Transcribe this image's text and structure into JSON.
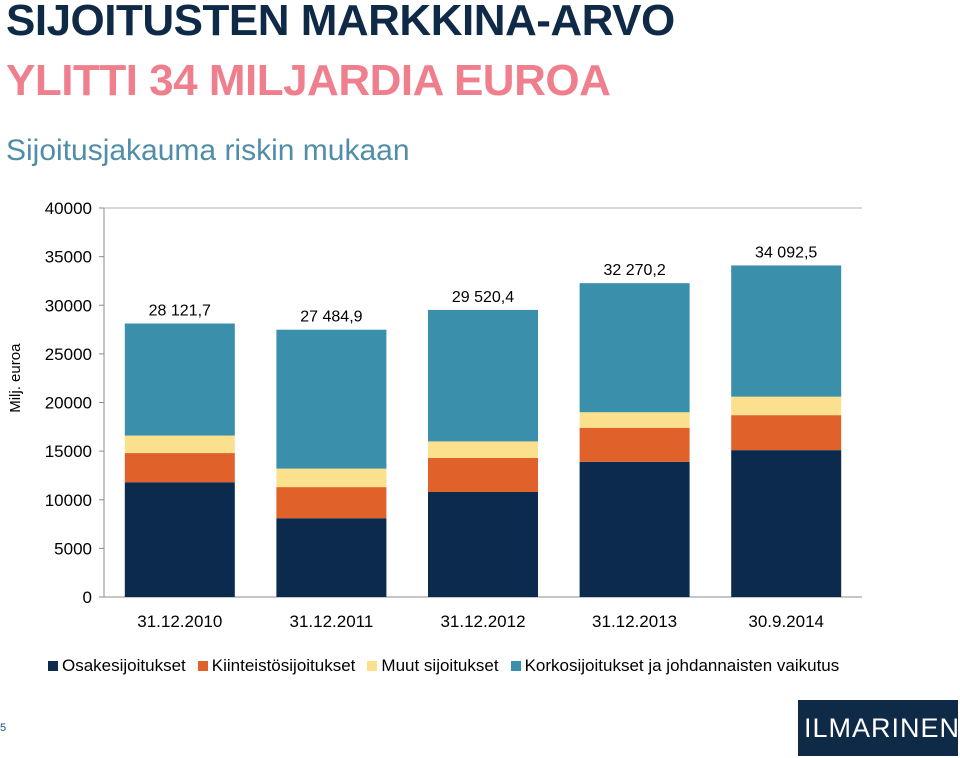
{
  "header": {
    "title_line1": "SIJOITUSTEN MARKKINA-ARVO",
    "title_line2": "YLITTI 34 MILJARDIA EUROA",
    "subtitle": "Sijoitusjakauma riskin mukaan"
  },
  "colors": {
    "title_dark": "#0f2a47",
    "title_pink": "#ef7f8c",
    "subtitle": "#4f8da8"
  },
  "chart_data": {
    "type": "bar",
    "stacked": true,
    "categories": [
      "31.12.2010",
      "31.12.2011",
      "31.12.2012",
      "31.12.2013",
      "30.9.2014"
    ],
    "ylabel": "Milj. euroa",
    "ylim": [
      0,
      40000
    ],
    "yticks": [
      0,
      5000,
      10000,
      15000,
      20000,
      25000,
      30000,
      35000,
      40000
    ],
    "grid": "top-line-only",
    "legend_position": "bottom",
    "series": [
      {
        "name": "Osakesijoitukset",
        "color": "#0b2a4e",
        "values": [
          11800,
          8100,
          10800,
          13900,
          15100
        ]
      },
      {
        "name": "Kiinteistösijoitukset",
        "color": "#e0622a",
        "values": [
          3000,
          3200,
          3500,
          3500,
          3600
        ]
      },
      {
        "name": "Muut sijoitukset",
        "color": "#fbe08e",
        "values": [
          1800,
          1900,
          1700,
          1600,
          1900
        ]
      },
      {
        "name": "Korkosijoitukset ja johdannaisten vaikutus",
        "color": "#3a8fab",
        "values": [
          11521.7,
          14284.9,
          13520.4,
          13270.2,
          13492.5
        ]
      }
    ],
    "totals": [
      28121.7,
      27484.9,
      29520.4,
      32270.2,
      34092.5
    ],
    "total_labels": [
      "28 121,7",
      "27 484,9",
      "29 520,4",
      "32 270,2",
      "34 092,5"
    ]
  },
  "footer": {
    "page_number": "5",
    "logo_text": "ILMARINEN",
    "logo_icon": "ilmarinen-stripes-icon"
  }
}
